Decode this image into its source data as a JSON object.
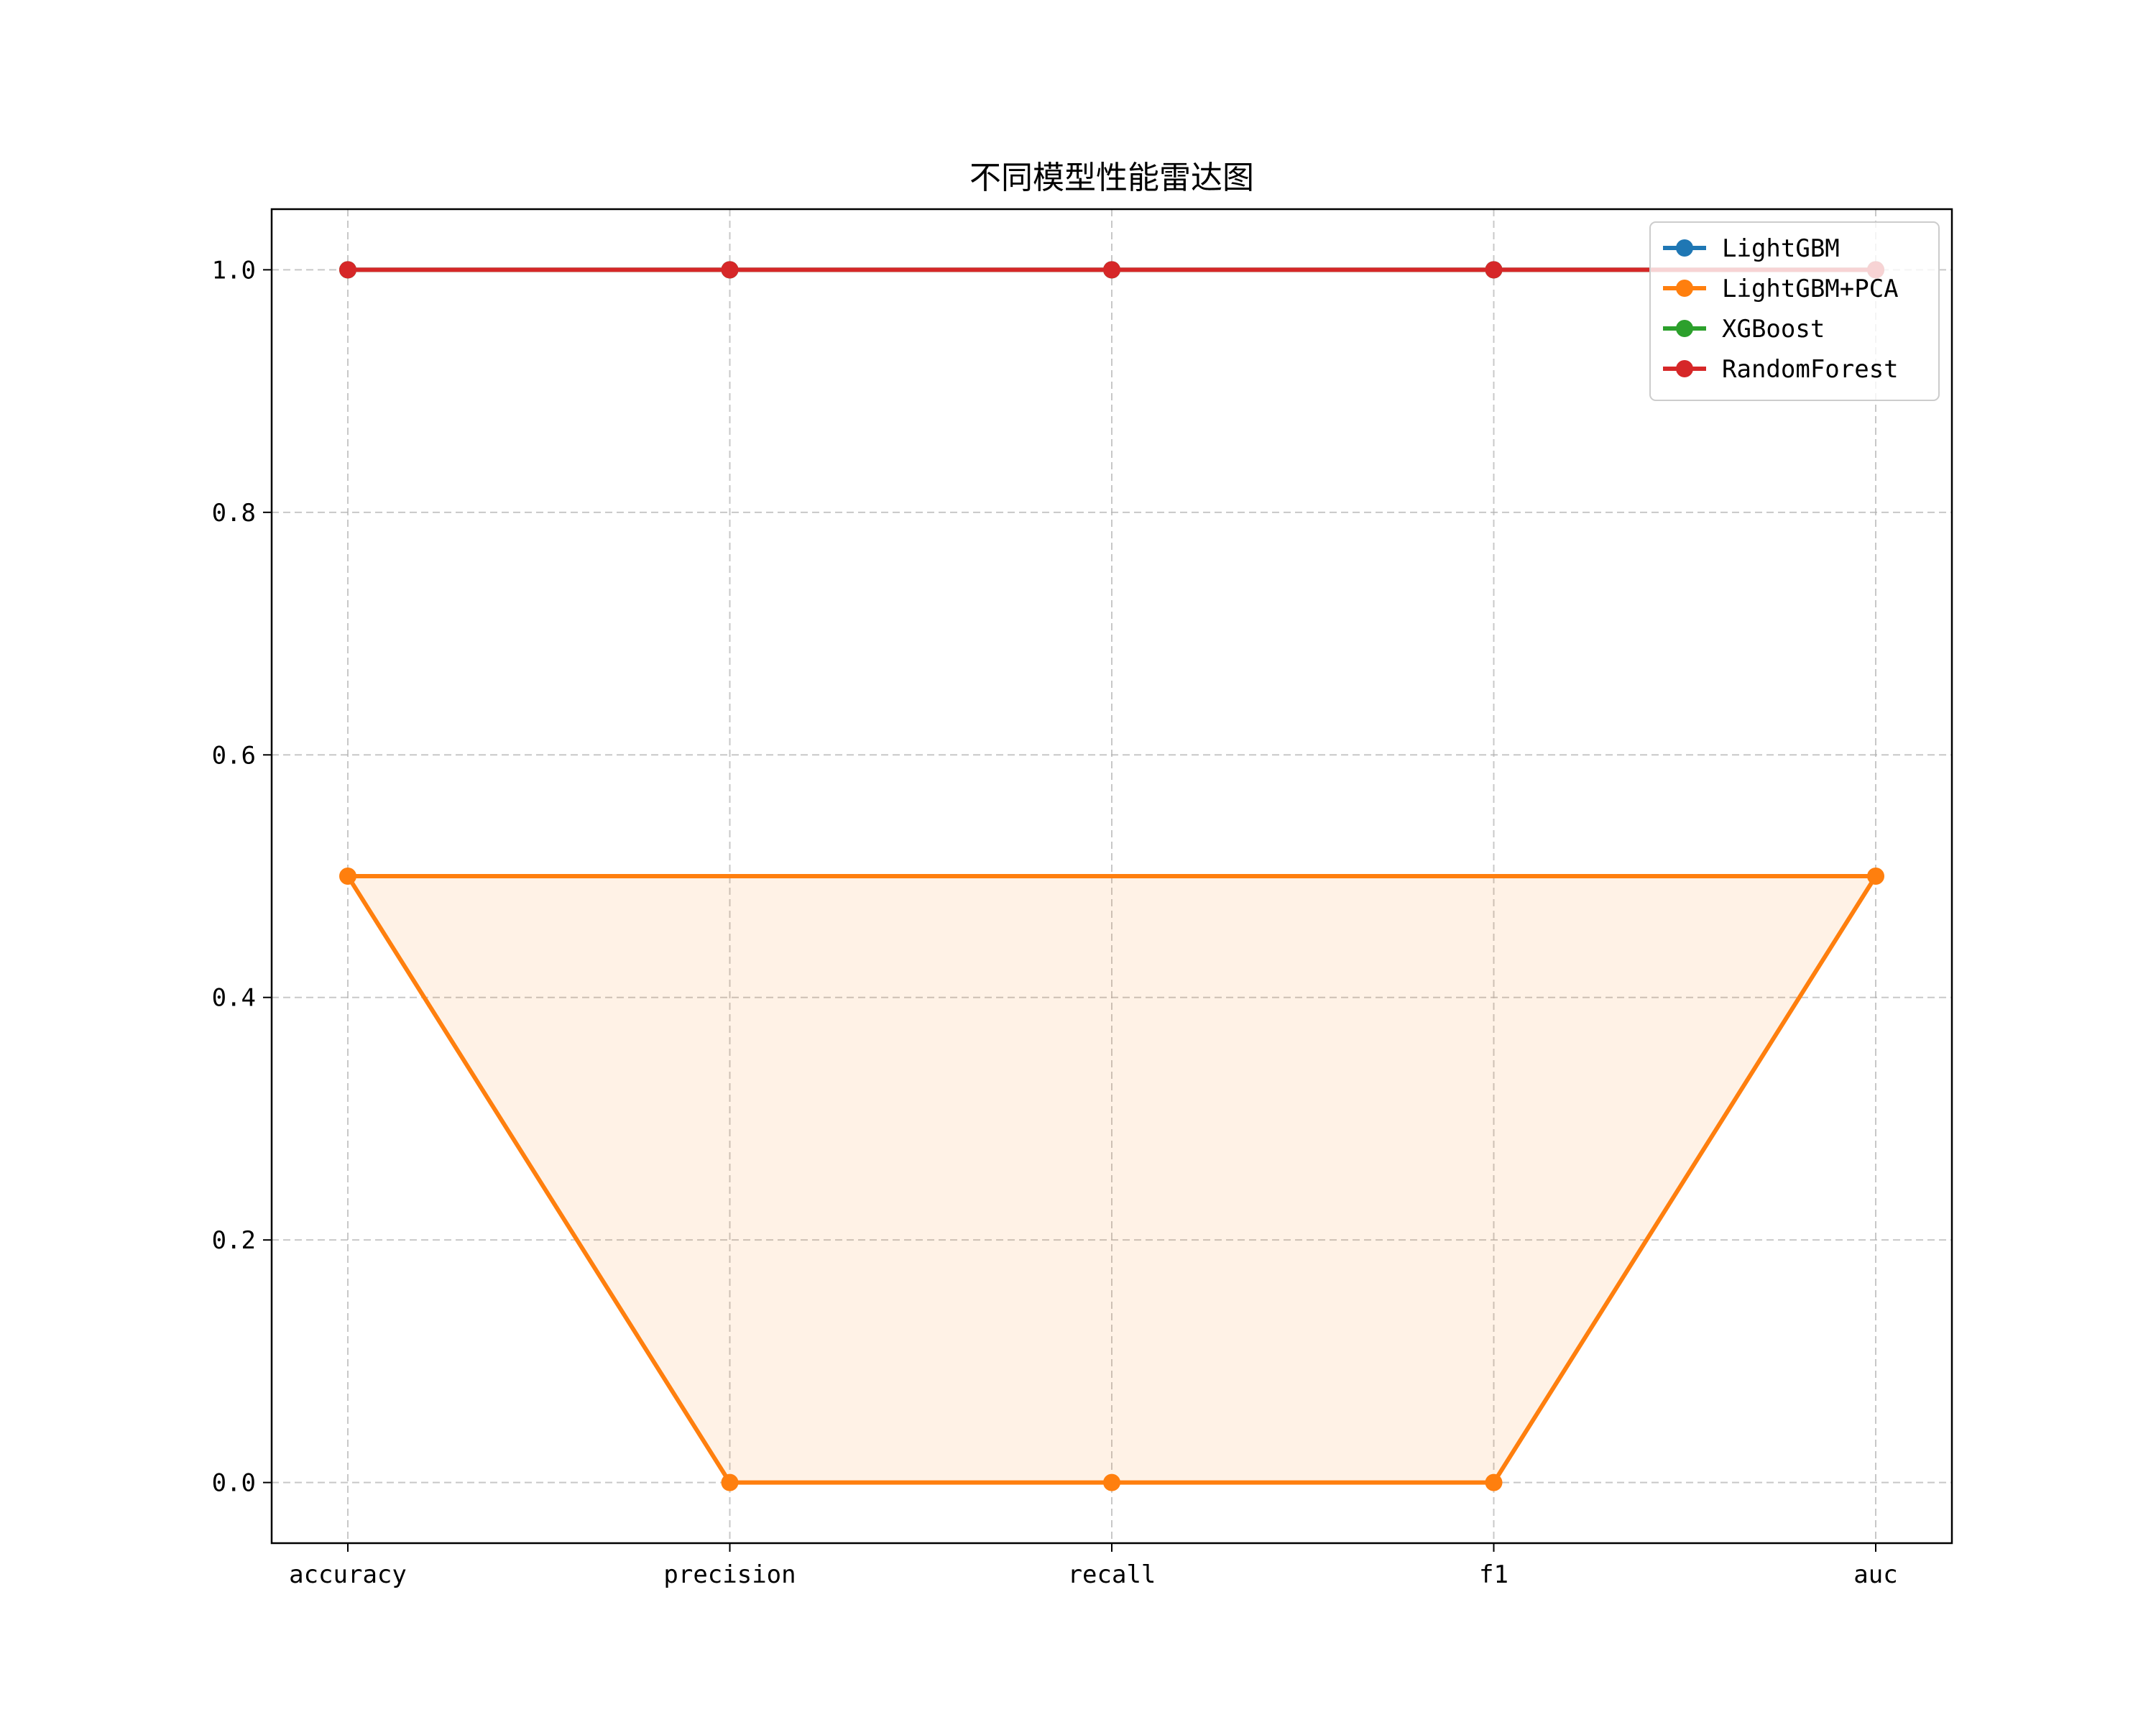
{
  "chart_data": {
    "type": "line",
    "title": "不同模型性能雷达图",
    "xlabel": "",
    "ylabel": "",
    "categories": [
      "accuracy",
      "precision",
      "recall",
      "f1",
      "auc"
    ],
    "ylim": [
      -0.05,
      1.05
    ],
    "yticks": [
      0.0,
      0.2,
      0.4,
      0.6,
      0.8,
      1.0
    ],
    "ytick_labels": [
      "0.0",
      "0.2",
      "0.4",
      "0.6",
      "0.8",
      "1.0"
    ],
    "grid": true,
    "legend_position": "top-right",
    "series": [
      {
        "name": "LightGBM",
        "values": [
          1.0,
          1.0,
          1.0,
          1.0,
          1.0
        ],
        "color": "#1f77b4",
        "fill": "#1f77b4"
      },
      {
        "name": "LightGBM+PCA",
        "values": [
          0.5,
          0.0,
          0.0,
          0.0,
          0.5
        ],
        "color": "#ff7f0e",
        "fill": "#ff7f0e"
      },
      {
        "name": "XGBoost",
        "values": [
          1.0,
          1.0,
          1.0,
          1.0,
          1.0
        ],
        "color": "#2ca02c",
        "fill": "#2ca02c"
      },
      {
        "name": "RandomForest",
        "values": [
          1.0,
          1.0,
          1.0,
          1.0,
          1.0
        ],
        "color": "#d62728",
        "fill": "#d62728"
      }
    ]
  }
}
